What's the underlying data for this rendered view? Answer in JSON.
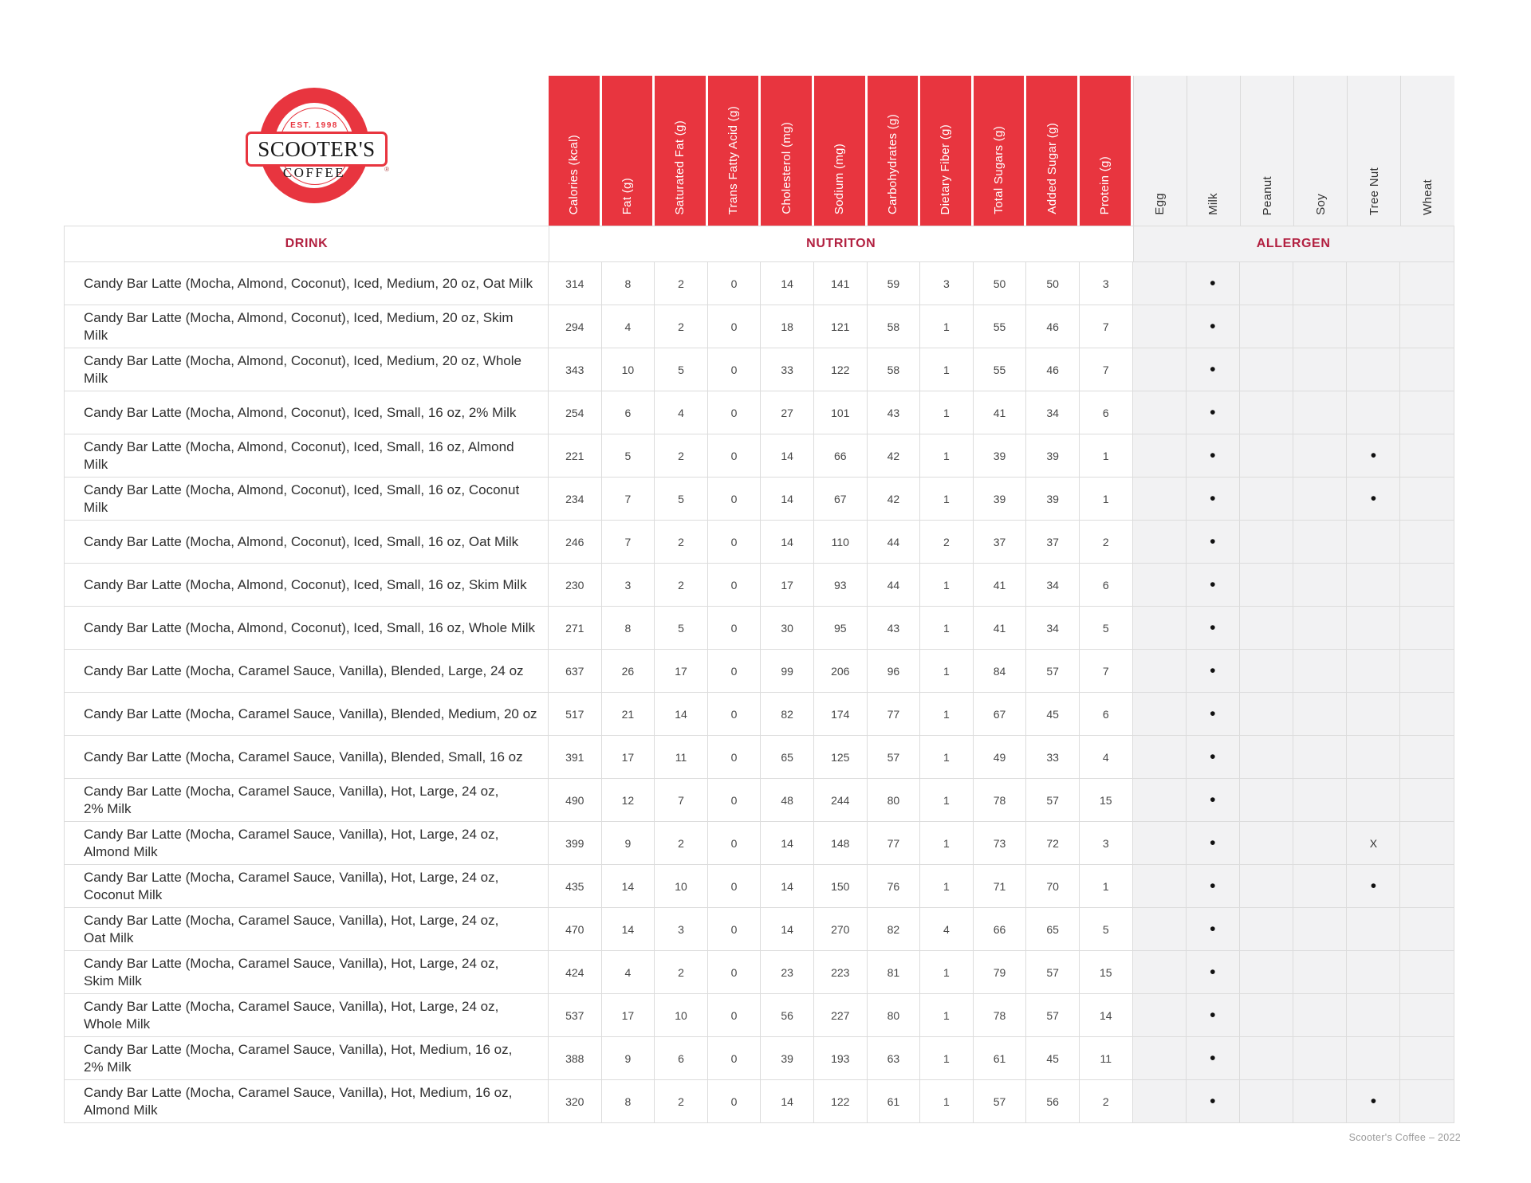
{
  "logo": {
    "est": "EST. 1998",
    "brand": "SCOOTER'S",
    "coffee": "COFFEE",
    "registered": "®"
  },
  "header": {
    "drink": "DRINK",
    "nutrition": "NUTRITON",
    "allergen": "ALLERGEN"
  },
  "nutrition_columns": [
    "Calories (kcal)",
    "Fat (g)",
    "Saturated Fat (g)",
    "Trans Fatty Acid (g)",
    "Cholesterol (mg)",
    "Sodium (mg)",
    "Carbohydrates (g)",
    "Dietary Fiber (g)",
    "Total Sugars (g)",
    "Added Sugar (g)",
    "Protein (g)"
  ],
  "allergen_columns": [
    "Egg",
    "Milk",
    "Peanut",
    "Soy",
    "Tree Nut",
    "Wheat"
  ],
  "rows": [
    {
      "name": "Candy Bar Latte (Mocha, Almond, Coconut), Iced, Medium, 20 oz, Oat Milk",
      "values": [
        314,
        8,
        2,
        0,
        14,
        141,
        59,
        3,
        50,
        50,
        3
      ],
      "allergens": [
        "",
        "•",
        "",
        "",
        "",
        ""
      ]
    },
    {
      "name": "Candy Bar Latte (Mocha, Almond, Coconut), Iced, Medium, 20 oz, Skim Milk",
      "values": [
        294,
        4,
        2,
        0,
        18,
        121,
        58,
        1,
        55,
        46,
        7
      ],
      "allergens": [
        "",
        "•",
        "",
        "",
        "",
        ""
      ]
    },
    {
      "name": "Candy Bar Latte (Mocha, Almond, Coconut), Iced, Medium, 20 oz, Whole Milk",
      "values": [
        343,
        10,
        5,
        0,
        33,
        122,
        58,
        1,
        55,
        46,
        7
      ],
      "allergens": [
        "",
        "•",
        "",
        "",
        "",
        ""
      ]
    },
    {
      "name": "Candy Bar Latte (Mocha, Almond, Coconut), Iced, Small, 16 oz, 2% Milk",
      "values": [
        254,
        6,
        4,
        0,
        27,
        101,
        43,
        1,
        41,
        34,
        6
      ],
      "allergens": [
        "",
        "•",
        "",
        "",
        "",
        ""
      ]
    },
    {
      "name": "Candy Bar Latte (Mocha, Almond, Coconut), Iced, Small, 16 oz, Almond Milk",
      "values": [
        221,
        5,
        2,
        0,
        14,
        66,
        42,
        1,
        39,
        39,
        1
      ],
      "allergens": [
        "",
        "•",
        "",
        "",
        "•",
        ""
      ]
    },
    {
      "name": "Candy Bar Latte (Mocha, Almond, Coconut), Iced, Small, 16 oz, Coconut Milk",
      "values": [
        234,
        7,
        5,
        0,
        14,
        67,
        42,
        1,
        39,
        39,
        1
      ],
      "allergens": [
        "",
        "•",
        "",
        "",
        "•",
        ""
      ]
    },
    {
      "name": "Candy Bar Latte (Mocha, Almond, Coconut), Iced, Small, 16 oz, Oat Milk",
      "values": [
        246,
        7,
        2,
        0,
        14,
        110,
        44,
        2,
        37,
        37,
        2
      ],
      "allergens": [
        "",
        "•",
        "",
        "",
        "",
        ""
      ]
    },
    {
      "name": "Candy Bar Latte (Mocha, Almond, Coconut), Iced, Small, 16 oz, Skim Milk",
      "values": [
        230,
        3,
        2,
        0,
        17,
        93,
        44,
        1,
        41,
        34,
        6
      ],
      "allergens": [
        "",
        "•",
        "",
        "",
        "",
        ""
      ]
    },
    {
      "name": "Candy Bar Latte (Mocha, Almond, Coconut), Iced, Small, 16 oz, Whole Milk",
      "values": [
        271,
        8,
        5,
        0,
        30,
        95,
        43,
        1,
        41,
        34,
        5
      ],
      "allergens": [
        "",
        "•",
        "",
        "",
        "",
        ""
      ]
    },
    {
      "name": "Candy Bar Latte (Mocha, Caramel Sauce, Vanilla), Blended, Large, 24 oz",
      "values": [
        637,
        26,
        17,
        0,
        99,
        206,
        96,
        1,
        84,
        57,
        7
      ],
      "allergens": [
        "",
        "•",
        "",
        "",
        "",
        ""
      ]
    },
    {
      "name": "Candy Bar Latte (Mocha, Caramel Sauce, Vanilla), Blended, Medium, 20 oz",
      "values": [
        517,
        21,
        14,
        0,
        82,
        174,
        77,
        1,
        67,
        45,
        6
      ],
      "allergens": [
        "",
        "•",
        "",
        "",
        "",
        ""
      ]
    },
    {
      "name": "Candy Bar Latte (Mocha, Caramel Sauce, Vanilla), Blended, Small, 16 oz",
      "values": [
        391,
        17,
        11,
        0,
        65,
        125,
        57,
        1,
        49,
        33,
        4
      ],
      "allergens": [
        "",
        "•",
        "",
        "",
        "",
        ""
      ]
    },
    {
      "name": "Candy Bar Latte (Mocha, Caramel Sauce, Vanilla), Hot, Large, 24 oz,\n2% Milk",
      "values": [
        490,
        12,
        7,
        0,
        48,
        244,
        80,
        1,
        78,
        57,
        15
      ],
      "allergens": [
        "",
        "•",
        "",
        "",
        "",
        ""
      ]
    },
    {
      "name": "Candy Bar Latte (Mocha, Caramel Sauce, Vanilla), Hot, Large, 24 oz,\nAlmond Milk",
      "values": [
        399,
        9,
        2,
        0,
        14,
        148,
        77,
        1,
        73,
        72,
        3
      ],
      "allergens": [
        "",
        "•",
        "",
        "",
        "X",
        ""
      ]
    },
    {
      "name": "Candy Bar Latte (Mocha, Caramel Sauce, Vanilla), Hot, Large, 24 oz,\nCoconut Milk",
      "values": [
        435,
        14,
        10,
        0,
        14,
        150,
        76,
        1,
        71,
        70,
        1
      ],
      "allergens": [
        "",
        "•",
        "",
        "",
        "•",
        ""
      ]
    },
    {
      "name": "Candy Bar Latte (Mocha, Caramel Sauce, Vanilla), Hot, Large, 24 oz,\nOat Milk",
      "values": [
        470,
        14,
        3,
        0,
        14,
        270,
        82,
        4,
        66,
        65,
        5
      ],
      "allergens": [
        "",
        "•",
        "",
        "",
        "",
        ""
      ]
    },
    {
      "name": "Candy Bar Latte (Mocha, Caramel Sauce, Vanilla), Hot, Large, 24 oz,\nSkim Milk",
      "values": [
        424,
        4,
        2,
        0,
        23,
        223,
        81,
        1,
        79,
        57,
        15
      ],
      "allergens": [
        "",
        "•",
        "",
        "",
        "",
        ""
      ]
    },
    {
      "name": "Candy Bar Latte (Mocha, Caramel Sauce, Vanilla), Hot, Large, 24 oz,\nWhole Milk",
      "values": [
        537,
        17,
        10,
        0,
        56,
        227,
        80,
        1,
        78,
        57,
        14
      ],
      "allergens": [
        "",
        "•",
        "",
        "",
        "",
        ""
      ]
    },
    {
      "name": "Candy Bar Latte (Mocha, Caramel Sauce, Vanilla), Hot, Medium, 16 oz,\n2% Milk",
      "values": [
        388,
        9,
        6,
        0,
        39,
        193,
        63,
        1,
        61,
        45,
        11
      ],
      "allergens": [
        "",
        "•",
        "",
        "",
        "",
        ""
      ]
    },
    {
      "name": "Candy Bar Latte (Mocha, Caramel Sauce, Vanilla), Hot, Medium, 16 oz,\nAlmond Milk",
      "values": [
        320,
        8,
        2,
        0,
        14,
        122,
        61,
        1,
        57,
        56,
        2
      ],
      "allergens": [
        "",
        "•",
        "",
        "",
        "•",
        ""
      ]
    }
  ],
  "footer": "Scooter's Coffee – 2022",
  "colors": {
    "red": "#E8353F",
    "dark_red": "#B22040",
    "allergen_bg": "#F2F2F3",
    "grid": "#DCDCDC"
  }
}
